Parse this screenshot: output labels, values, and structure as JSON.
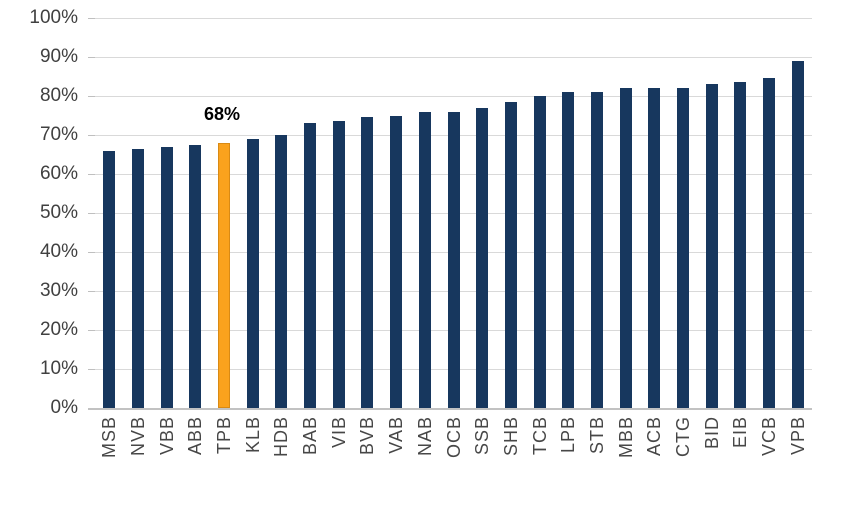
{
  "chart_data": {
    "type": "bar",
    "categories": [
      "MSB",
      "NVB",
      "VBB",
      "ABB",
      "TPB",
      "KLB",
      "HDB",
      "BAB",
      "VIB",
      "BVB",
      "VAB",
      "NAB",
      "OCB",
      "SSB",
      "SHB",
      "TCB",
      "LPB",
      "STB",
      "MBB",
      "ACB",
      "CTG",
      "BID",
      "EIB",
      "VCB",
      "VPB"
    ],
    "values": [
      66,
      66.5,
      67,
      67.5,
      68,
      69,
      70,
      73,
      73.5,
      74.5,
      75,
      76,
      76,
      77,
      78.5,
      80,
      81,
      81,
      82,
      82,
      82,
      83,
      83.5,
      84.5,
      89
    ],
    "title": "",
    "xlabel": "",
    "ylabel": "",
    "ylim": [
      0,
      100
    ],
    "ytick_step": 10,
    "ytick_labels": [
      "0%",
      "10%",
      "20%",
      "30%",
      "40%",
      "50%",
      "60%",
      "70%",
      "80%",
      "90%",
      "100%"
    ],
    "grid": true,
    "legend": "none",
    "highlight": {
      "category": "TPB",
      "index": 4,
      "label": "68%"
    },
    "colors": {
      "bar": "#17375e",
      "highlight_bar": "#faa21d",
      "highlight_border": "#d98a14",
      "gridline": "#d9d9d9",
      "axis_line": "#c2c2c2",
      "tick_text": "#474747",
      "data_label_text": "#000000",
      "background": "#ffffff"
    }
  }
}
